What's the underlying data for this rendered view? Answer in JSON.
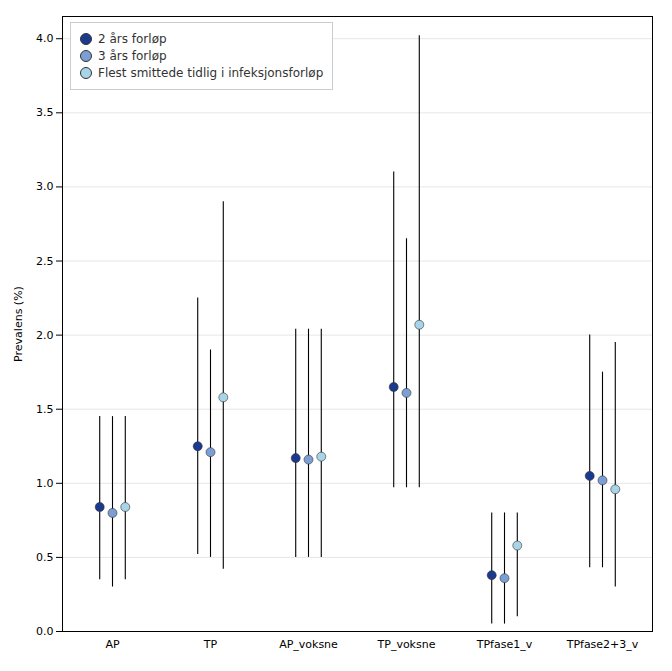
{
  "chart_data": {
    "type": "dot",
    "categories": [
      "AP",
      "TP",
      "AP_voksne",
      "TP_voksne",
      "TPfase1_v",
      "TPfase2+3_v"
    ],
    "series": [
      {
        "name": "2 års forløp",
        "color": "#1a3a8f",
        "values": [
          0.84,
          1.25,
          1.17,
          1.65,
          0.38,
          1.05
        ],
        "lower": [
          0.35,
          0.52,
          0.5,
          0.97,
          0.05,
          0.43
        ],
        "upper": [
          1.45,
          2.25,
          2.04,
          3.1,
          0.8,
          2.0
        ]
      },
      {
        "name": "3 års forløp",
        "color": "#7b9fd4",
        "values": [
          0.8,
          1.21,
          1.16,
          1.61,
          0.36,
          1.02
        ],
        "lower": [
          0.3,
          0.5,
          0.5,
          0.97,
          0.05,
          0.43
        ],
        "upper": [
          1.45,
          1.9,
          2.04,
          2.65,
          0.8,
          1.75
        ]
      },
      {
        "name": "Flest smittede tidlig i infeksjonsforløp",
        "color": "#a8d4e8",
        "values": [
          0.84,
          1.58,
          1.18,
          2.07,
          0.58,
          0.96
        ],
        "lower": [
          0.35,
          0.42,
          0.5,
          0.97,
          0.1,
          0.3
        ],
        "upper": [
          1.45,
          2.9,
          2.04,
          4.02,
          0.8,
          1.95
        ]
      }
    ],
    "ylabel": "Prevalens (%)",
    "ylim": [
      0.0,
      4.15
    ],
    "yticks": [
      {
        "value": 0,
        "label": "0.0"
      },
      0.5,
      {
        "value": 1,
        "label": "1.0"
      },
      1.5,
      {
        "value": 2,
        "label": "2.0"
      },
      2.5,
      {
        "value": 3,
        "label": "3.0"
      },
      3.5,
      {
        "value": 4,
        "label": "4.0"
      }
    ],
    "grid": true,
    "legend": "upper left"
  }
}
